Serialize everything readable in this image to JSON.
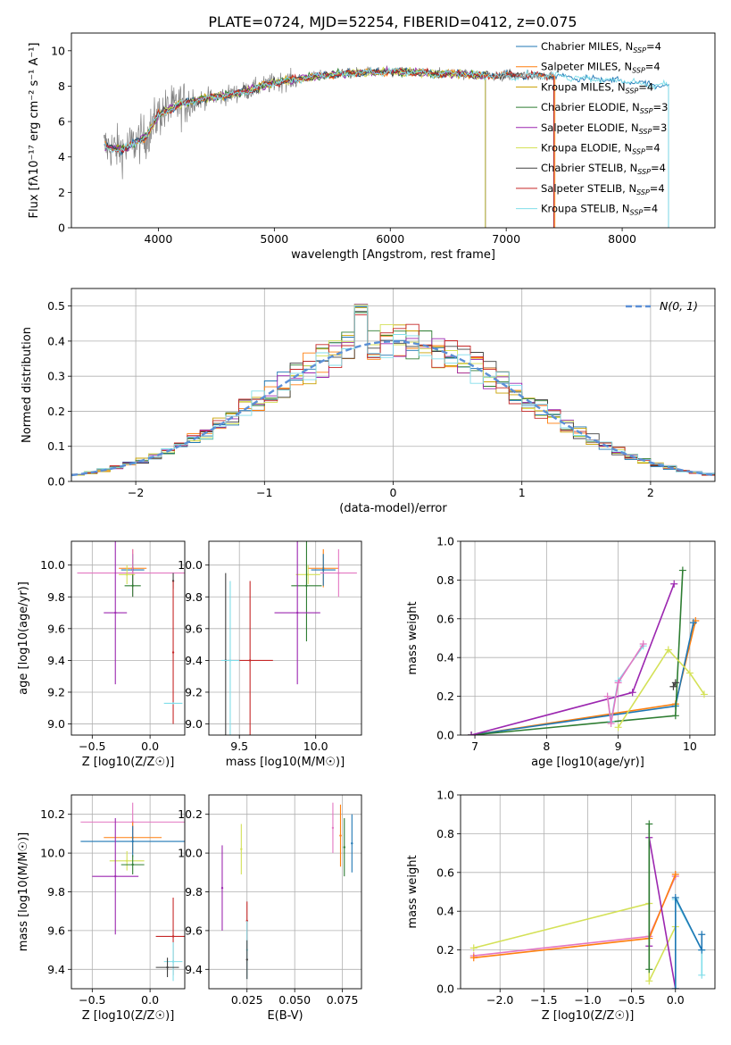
{
  "figure": {
    "title": "PLATE=0724, MJD=52254, FIBERID=0412, z=0.075"
  },
  "models": [
    {
      "name": "Chabrier MILES",
      "color": "#1f77b4"
    },
    {
      "name": "Salpeter MILES",
      "color": "#ff7f0e"
    },
    {
      "name": "Kroupa MILES",
      "color": "#c8a000"
    },
    {
      "name": "Chabrier ELODIE",
      "color": "#2e7d32"
    },
    {
      "name": "Salpeter ELODIE",
      "color": "#9c27b0"
    },
    {
      "name": "Kroupa ELODIE",
      "color": "#d4e157"
    },
    {
      "name": "Chabrier STELIB",
      "color": "#404040"
    },
    {
      "name": "Salpeter STELIB",
      "color": "#c62828"
    },
    {
      "name": "Kroupa STELIB",
      "color": "#80deea"
    }
  ],
  "chart_data": [
    {
      "id": "spectrum",
      "type": "line",
      "xlabel": "wavelength [Angstrom, rest frame]",
      "ylabel": "Flux [fλ10⁻¹⁷ erg cm⁻² s⁻¹ A⁻¹]",
      "xlim": [
        3250,
        8800
      ],
      "ylim": [
        0,
        11
      ],
      "xticks": [
        4000,
        5000,
        6000,
        7000,
        8000
      ],
      "yticks": [
        0,
        2,
        4,
        6,
        8,
        10
      ],
      "grid": false,
      "legend_position": "right",
      "legend": [
        {
          "label": "Chabrier MILES, N",
          "sub": "SSP",
          "suffix": "=4",
          "color": "#1f77b4"
        },
        {
          "label": "Salpeter MILES, N",
          "sub": "SSP",
          "suffix": "=4",
          "color": "#ff7f0e"
        },
        {
          "label": "Kroupa MILES, N",
          "sub": "SSP",
          "suffix": "=4",
          "color": "#c8a000"
        },
        {
          "label": "Chabrier ELODIE, N",
          "sub": "SSP",
          "suffix": "=3",
          "color": "#2e7d32"
        },
        {
          "label": "Salpeter ELODIE, N",
          "sub": "SSP",
          "suffix": "=3",
          "color": "#9c27b0"
        },
        {
          "label": "Kroupa ELODIE, N",
          "sub": "SSP",
          "suffix": "=4",
          "color": "#d4e157"
        },
        {
          "label": "Chabrier STELIB, N",
          "sub": "SSP",
          "suffix": "=4",
          "color": "#404040"
        },
        {
          "label": "Salpeter STELIB, N",
          "sub": "SSP",
          "suffix": "=4",
          "color": "#c62828"
        },
        {
          "label": "Kroupa STELIB, N",
          "sub": "SSP",
          "suffix": "=4",
          "color": "#80deea"
        }
      ],
      "continuum": {
        "x": [
          3530,
          3700,
          3900,
          4000,
          4200,
          4400,
          4600,
          4800,
          5000,
          5200,
          5400,
          5600,
          5800,
          6000,
          6200,
          6400,
          6600,
          6800,
          7000,
          7200,
          7400,
          7600,
          7800,
          8000,
          8200,
          8400
        ],
        "y": [
          4.6,
          4.4,
          5.2,
          6.4,
          7.0,
          7.3,
          7.5,
          7.8,
          8.2,
          8.4,
          8.6,
          8.7,
          8.8,
          8.8,
          8.8,
          8.7,
          8.7,
          8.6,
          8.6,
          8.6,
          8.6,
          8.5,
          8.4,
          8.3,
          8.1,
          8.0
        ]
      },
      "observed": {
        "noise": 0.35,
        "x_range": [
          3530,
          7410
        ],
        "color": "#808080"
      },
      "model_spectra": [
        {
          "model": "Chabrier MILES",
          "x_range": [
            3530,
            8400
          ]
        },
        {
          "model": "Salpeter MILES",
          "x_range": [
            3540,
            7420
          ]
        },
        {
          "model": "Kroupa MILES",
          "x_range": [
            3540,
            6820
          ]
        },
        {
          "model": "Chabrier ELODIE",
          "x_range": [
            3540,
            6820
          ]
        },
        {
          "model": "Salpeter ELODIE",
          "x_range": [
            3540,
            6820
          ]
        },
        {
          "model": "Kroupa ELODIE",
          "x_range": [
            3900,
            6820
          ]
        },
        {
          "model": "Chabrier STELIB",
          "x_range": [
            3540,
            7410
          ]
        },
        {
          "model": "Salpeter STELIB",
          "x_range": [
            3540,
            7410
          ]
        },
        {
          "model": "Kroupa STELIB",
          "x_range": [
            3540,
            8400
          ]
        }
      ]
    },
    {
      "id": "residuals",
      "type": "bar",
      "xlabel": "(data-model)/error",
      "ylabel": "Normed distribution",
      "xlim": [
        -2.5,
        2.5
      ],
      "ylim": [
        0,
        0.55
      ],
      "xticks": [
        -2,
        -1,
        0,
        1,
        2
      ],
      "yticks": [
        0,
        0.1,
        0.2,
        0.3,
        0.4,
        0.5
      ],
      "grid": true,
      "bin_width": 0.1,
      "legend": "N(0, 1)",
      "legend_position": "top-right",
      "reference_color": "#5b8fd6"
    },
    {
      "id": "age-vs-Z",
      "type": "scatter",
      "xlabel": "Z [log10(Z/Z☉)]",
      "ylabel": "age [log10(age/yr)]",
      "xlim": [
        -0.68,
        0.3
      ],
      "ylim": [
        8.93,
        10.15
      ],
      "xticks": [
        -0.5,
        0
      ],
      "xticklabels": [
        "−0.5",
        "0.0"
      ],
      "yticks": [
        9.0,
        9.2,
        9.4,
        9.6,
        9.8,
        10.0
      ],
      "grid": true,
      "errorbars": [
        {
          "color": "#ff7f0e",
          "x": -0.15,
          "y": 9.98,
          "xerr": 0.12,
          "yerr": 0.12
        },
        {
          "color": "#1f77b4",
          "x": -0.15,
          "y": 9.97,
          "xerr": 0.1,
          "yerr": 0.1
        },
        {
          "color": "#e377c2",
          "x": -0.15,
          "y": 9.95,
          "xerr": 0.48,
          "yerr": 0.15
        },
        {
          "color": "#d4e157",
          "x": -0.2,
          "y": 9.94,
          "xerr": 0.07,
          "yerr": 0.06
        },
        {
          "color": "#2e7d32",
          "x": -0.15,
          "y": 9.87,
          "xerr": 0.07,
          "yerr": 0.07
        },
        {
          "color": "#9c27b0",
          "x": -0.3,
          "y": 9.7,
          "xerr": 0.1,
          "yerr": 0.45
        },
        {
          "color": "#404040",
          "x": 0.2,
          "y": 9.9,
          "xerr": 0.0,
          "yerr": 0.05
        },
        {
          "color": "#c62828",
          "x": 0.2,
          "y": 9.45,
          "xerr": 0.0,
          "yerr": 0.45
        },
        {
          "color": "#80deea",
          "x": 0.2,
          "y": 9.13,
          "xerr": 0.08,
          "yerr": 0.0
        }
      ]
    },
    {
      "id": "age-vs-mass",
      "type": "scatter",
      "xlabel": "mass [log10(M/M☉)]",
      "xlim": [
        9.3,
        10.3
      ],
      "ylim": [
        8.93,
        10.15
      ],
      "xticks": [
        9.5,
        10.0
      ],
      "yticks": [
        9.0,
        9.2,
        9.4,
        9.6,
        9.8,
        10.0
      ],
      "grid": true,
      "errorbars": [
        {
          "color": "#ff7f0e",
          "x": 10.05,
          "y": 9.98,
          "xerr": 0.1,
          "yerr": 0.12
        },
        {
          "color": "#1f77b4",
          "x": 10.05,
          "y": 9.97,
          "xerr": 0.08,
          "yerr": 0.1
        },
        {
          "color": "#e377c2",
          "x": 10.15,
          "y": 9.95,
          "xerr": 0.12,
          "yerr": 0.15
        },
        {
          "color": "#d4e157",
          "x": 9.95,
          "y": 9.94,
          "xerr": 0.08,
          "yerr": 0.06
        },
        {
          "color": "#2e7d32",
          "x": 9.94,
          "y": 9.87,
          "xerr": 0.1,
          "yerr": 0.35
        },
        {
          "color": "#9c27b0",
          "x": 9.88,
          "y": 9.7,
          "xerr": 0.15,
          "yerr": 0.45
        },
        {
          "color": "#404040",
          "x": 9.41,
          "y": 9.4,
          "xerr": 0.0,
          "yerr": 0.55
        },
        {
          "color": "#c62828",
          "x": 9.57,
          "y": 9.4,
          "xerr": 0.15,
          "yerr": 0.5
        },
        {
          "color": "#80deea",
          "x": 9.44,
          "y": 9.4,
          "xerr": 0.06,
          "yerr": 0.5
        }
      ]
    },
    {
      "id": "massweight-vs-age",
      "type": "line",
      "xlabel": "age [log10(age/yr)]",
      "ylabel": "mass weight",
      "xlim": [
        6.8,
        10.35
      ],
      "ylim": [
        0,
        1
      ],
      "xticks": [
        7,
        8,
        9,
        10
      ],
      "yticks": [
        0,
        0.2,
        0.4,
        0.6,
        0.8,
        1.0
      ],
      "grid": true,
      "series": [
        {
          "color": "#ff7f0e",
          "x": [
            6.95,
            9.8,
            10.08
          ],
          "y": [
            0.0,
            0.16,
            0.59
          ]
        },
        {
          "color": "#1f77b4",
          "x": [
            6.95,
            9.8,
            10.05
          ],
          "y": [
            0.0,
            0.15,
            0.58
          ]
        },
        {
          "color": "#2e7d32",
          "x": [
            6.95,
            9.8,
            9.9
          ],
          "y": [
            0.0,
            0.1,
            0.85
          ]
        },
        {
          "color": "#9c27b0",
          "x": [
            6.95,
            9.2,
            9.78
          ],
          "y": [
            0.0,
            0.22,
            0.78
          ]
        },
        {
          "color": "#d4e157",
          "x": [
            9.0,
            9.7,
            10.0,
            10.2
          ],
          "y": [
            0.04,
            0.44,
            0.32,
            0.21
          ]
        },
        {
          "color": "#80deea",
          "x": [
            8.85,
            8.9,
            9.0,
            9.35
          ],
          "y": [
            0.2,
            0.07,
            0.28,
            0.46
          ]
        },
        {
          "color": "#e377c2",
          "x": [
            8.85,
            8.9,
            9.0,
            9.35
          ],
          "y": [
            0.2,
            0.06,
            0.27,
            0.47
          ]
        },
        {
          "color": "#404040",
          "x": [
            9.77,
            9.8
          ],
          "y": [
            0.25,
            0.27
          ]
        }
      ]
    },
    {
      "id": "mass-vs-Z",
      "type": "scatter",
      "xlabel": "Z [log10(Z/Z☉)]",
      "ylabel": "mass [log10(M/M☉)]",
      "xlim": [
        -0.68,
        0.3
      ],
      "ylim": [
        9.3,
        10.3
      ],
      "xticks": [
        -0.5,
        0
      ],
      "xticklabels": [
        "−0.5",
        "0.0"
      ],
      "yticks": [
        9.4,
        9.6,
        9.8,
        10.0,
        10.2
      ],
      "grid": true,
      "errorbars": [
        {
          "color": "#e377c2",
          "x": -0.15,
          "y": 10.16,
          "xerr": 0.45,
          "yerr": 0.1
        },
        {
          "color": "#ff7f0e",
          "x": -0.15,
          "y": 10.08,
          "xerr": 0.25,
          "yerr": 0.08
        },
        {
          "color": "#1f77b4",
          "x": -0.15,
          "y": 10.06,
          "xerr": 0.45,
          "yerr": 0.08
        },
        {
          "color": "#d4e157",
          "x": -0.2,
          "y": 9.96,
          "xerr": 0.15,
          "yerr": 0.05
        },
        {
          "color": "#2e7d32",
          "x": -0.15,
          "y": 9.94,
          "xerr": 0.1,
          "yerr": 0.05
        },
        {
          "color": "#9c27b0",
          "x": -0.3,
          "y": 9.88,
          "xerr": 0.2,
          "yerr": 0.3
        },
        {
          "color": "#c62828",
          "x": 0.2,
          "y": 9.57,
          "xerr": 0.15,
          "yerr": 0.2
        },
        {
          "color": "#80deea",
          "x": 0.2,
          "y": 9.44,
          "xerr": 0.08,
          "yerr": 0.1
        },
        {
          "color": "#404040",
          "x": 0.15,
          "y": 9.41,
          "xerr": 0.1,
          "yerr": 0.05
        }
      ]
    },
    {
      "id": "mass-vs-EBV",
      "type": "scatter",
      "xlabel": "E(B-V)",
      "xlim": [
        0.005,
        0.085
      ],
      "ylim": [
        9.3,
        10.3
      ],
      "xticks": [
        0.025,
        0.05,
        0.075
      ],
      "xticklabels": [
        "0.025",
        "0.050",
        "0.075"
      ],
      "yticks": [
        9.4,
        9.6,
        9.8,
        10.0,
        10.2
      ],
      "grid": true,
      "errorbars": [
        {
          "color": "#9c27b0",
          "x": 0.012,
          "y": 9.82,
          "xerr": 0,
          "yerr": 0.22
        },
        {
          "color": "#d4e157",
          "x": 0.022,
          "y": 10.02,
          "xerr": 0,
          "yerr": 0.13
        },
        {
          "color": "#c62828",
          "x": 0.025,
          "y": 9.65,
          "xerr": 0,
          "yerr": 0.1
        },
        {
          "color": "#80deea",
          "x": 0.025,
          "y": 9.5,
          "xerr": 0,
          "yerr": 0.15
        },
        {
          "color": "#404040",
          "x": 0.025,
          "y": 9.45,
          "xerr": 0,
          "yerr": 0.1
        },
        {
          "color": "#e377c2",
          "x": 0.07,
          "y": 10.13,
          "xerr": 0,
          "yerr": 0.13
        },
        {
          "color": "#ff7f0e",
          "x": 0.074,
          "y": 10.09,
          "xerr": 0,
          "yerr": 0.16
        },
        {
          "color": "#2e7d32",
          "x": 0.076,
          "y": 10.03,
          "xerr": 0,
          "yerr": 0.15
        },
        {
          "color": "#1f77b4",
          "x": 0.08,
          "y": 10.05,
          "xerr": 0,
          "yerr": 0.15
        }
      ]
    },
    {
      "id": "massweight-vs-Z",
      "type": "line",
      "xlabel": "Z [log10(Z/Z☉)]",
      "ylabel": "mass weight",
      "xlim": [
        -2.45,
        0.45
      ],
      "ylim": [
        0,
        1
      ],
      "xticks": [
        -2.0,
        -1.5,
        -1.0,
        -0.5,
        0.0
      ],
      "xticklabels": [
        "−2.0",
        "−1.5",
        "−1.0",
        "−0.5",
        "0.0"
      ],
      "yticks": [
        0,
        0.2,
        0.4,
        0.6,
        0.8,
        1.0
      ],
      "grid": true,
      "series": [
        {
          "color": "#d4e157",
          "x": [
            -2.3,
            -0.3,
            -0.3,
            0.0
          ],
          "y": [
            0.21,
            0.44,
            0.04,
            0.32
          ]
        },
        {
          "color": "#e377c2",
          "x": [
            -2.3,
            -0.3,
            0.0
          ],
          "y": [
            0.17,
            0.27,
            0.58
          ]
        },
        {
          "color": "#ff7f0e",
          "x": [
            -2.3,
            -0.3,
            0.0
          ],
          "y": [
            0.16,
            0.26,
            0.59
          ]
        },
        {
          "color": "#9c27b0",
          "x": [
            -0.3,
            -0.3,
            0.0
          ],
          "y": [
            0.22,
            0.78,
            0.0
          ]
        },
        {
          "color": "#2e7d32",
          "x": [
            -0.3,
            -0.3
          ],
          "y": [
            0.1,
            0.85
          ]
        },
        {
          "color": "#80deea",
          "x": [
            0.0,
            0.0,
            0.3,
            0.3
          ],
          "y": [
            0.0,
            0.46,
            0.2,
            0.07
          ]
        },
        {
          "color": "#1f77b4",
          "x": [
            0.0,
            0.0,
            0.3,
            0.3
          ],
          "y": [
            0.0,
            0.47,
            0.2,
            0.28
          ]
        }
      ]
    }
  ]
}
